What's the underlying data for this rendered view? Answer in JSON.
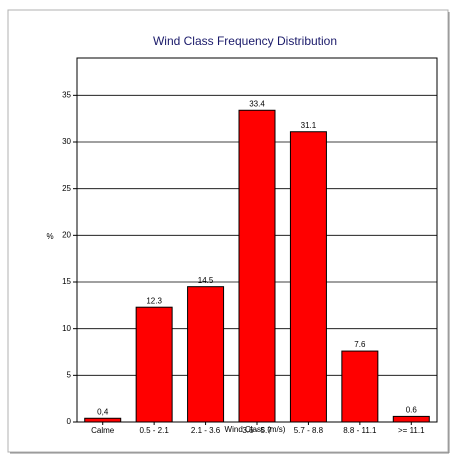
{
  "chart_data": {
    "type": "bar",
    "title": "Wind Class Frequency Distribution",
    "x_label": "Wind Class (m/s)",
    "y_label": "%",
    "categories": [
      "Calme",
      "0.5 - 2.1",
      "2.1 - 3.6",
      "3.6 - 5.7",
      "5.7 - 8.8",
      "8.8 - 11.1",
      ">= 11.1"
    ],
    "values": [
      0.4,
      12.3,
      14.5,
      33.4,
      31.1,
      7.6,
      0.6
    ],
    "value_labels": [
      "0,4",
      "12.3",
      "14.5",
      "33.4",
      "31.1",
      "7.6",
      "0.6"
    ],
    "color": "#ff0000",
    "ylim": [
      0,
      39
    ],
    "yticks": [
      0,
      5,
      10,
      15,
      20,
      25,
      30,
      35
    ],
    "grid": true
  }
}
